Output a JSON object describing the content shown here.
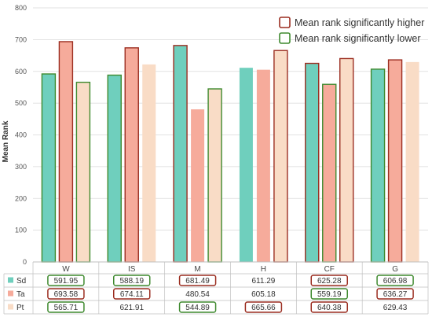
{
  "chart_data": {
    "type": "bar",
    "title": "",
    "xlabel": "",
    "ylabel": "Mean Rank",
    "ylim": [
      0,
      800
    ],
    "yticks": [
      0,
      100,
      200,
      300,
      400,
      500,
      600,
      700,
      800
    ],
    "grid": true,
    "categories": [
      "W",
      "IS",
      "M",
      "H",
      "CF",
      "G"
    ],
    "series": [
      {
        "name": "Sd",
        "color": "#6fcfbd",
        "values": [
          591.95,
          588.19,
          681.49,
          611.29,
          625.28,
          606.98
        ],
        "labels": [
          "591.95",
          "588.19",
          "681.49",
          "611.29",
          "625.28",
          "606.98"
        ],
        "marks": [
          "lower",
          "lower",
          "higher",
          "none",
          "higher",
          "lower"
        ]
      },
      {
        "name": "Ta",
        "color": "#f6ab9b",
        "values": [
          693.58,
          674.11,
          480.54,
          605.18,
          559.19,
          636.27
        ],
        "labels": [
          "693.58",
          "674.11",
          "480.54",
          "605.18",
          "559.19",
          "636.27"
        ],
        "marks": [
          "higher",
          "higher",
          "none",
          "none",
          "lower",
          "higher"
        ]
      },
      {
        "name": "Pt",
        "color": "#f9dcc6",
        "values": [
          565.71,
          621.91,
          544.89,
          665.66,
          640.38,
          629.43
        ],
        "labels": [
          "565.71",
          "621.91",
          "544.89",
          "665.66",
          "640.38",
          "629.43"
        ],
        "marks": [
          "lower",
          "none",
          "lower",
          "higher",
          "higher",
          "none"
        ]
      }
    ],
    "legend": {
      "placement": "top-right",
      "entries": [
        {
          "label": "Mean rank significantly higher",
          "color": "#9b2d20"
        },
        {
          "label": "Mean rank significantly lower",
          "color": "#3f8a2f"
        }
      ]
    }
  }
}
